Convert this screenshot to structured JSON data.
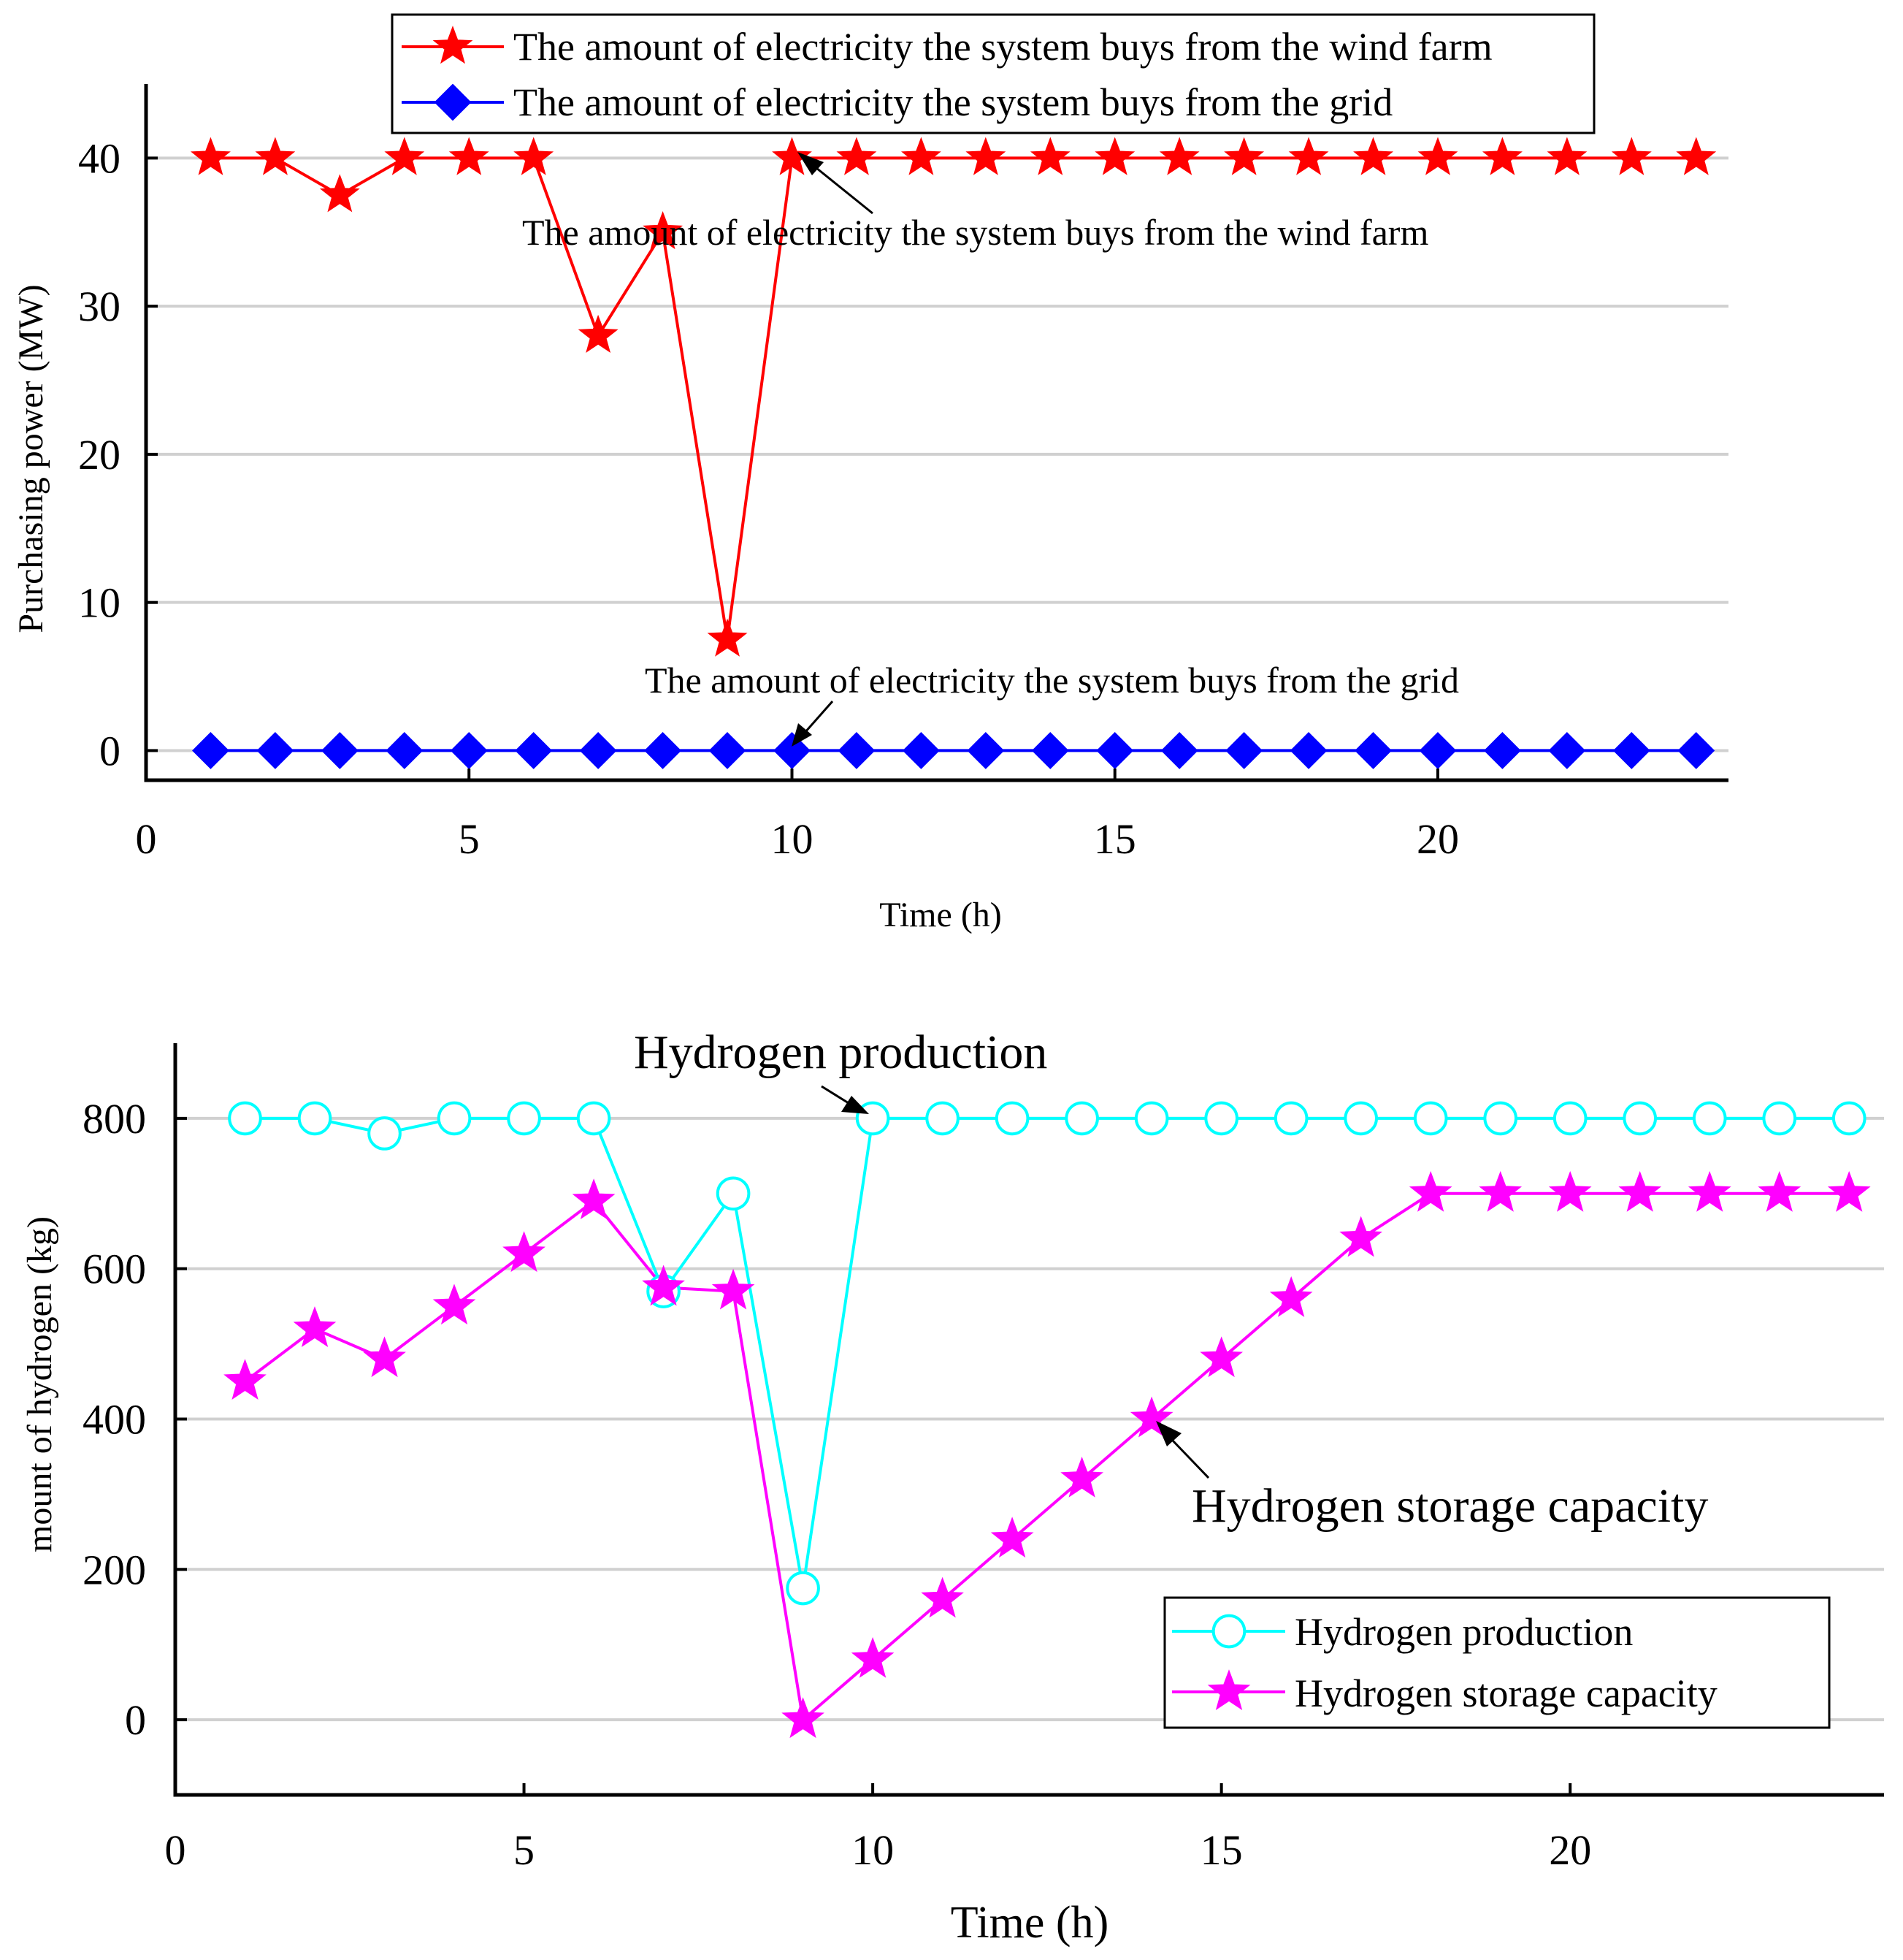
{
  "chart_data": [
    {
      "type": "line",
      "xlabel": "Time (h)",
      "ylabel": "Purchasing power (MW)",
      "xlim": [
        0,
        24.5
      ],
      "ylim": [
        -2,
        45
      ],
      "xticks": [
        0,
        5,
        10,
        15,
        20
      ],
      "yticks": [
        0,
        10,
        20,
        30,
        40
      ],
      "grid": "horizontal",
      "legend_position": "top",
      "x": [
        1,
        2,
        3,
        4,
        5,
        6,
        7,
        8,
        9,
        10,
        11,
        12,
        13,
        14,
        15,
        16,
        17,
        18,
        19,
        20,
        21,
        22,
        23,
        24
      ],
      "series": [
        {
          "name": "The amount of electricity the system buys from the wind farm",
          "color": "#ff0000",
          "marker": "star",
          "values": [
            40,
            40,
            37.5,
            40,
            40,
            40,
            28,
            35,
            7.5,
            40,
            40,
            40,
            40,
            40,
            40,
            40,
            40,
            40,
            40,
            40,
            40,
            40,
            40,
            40
          ]
        },
        {
          "name": "The amount of electricity the system buys from the grid",
          "color": "#0000ff",
          "marker": "diamond",
          "values": [
            0,
            0,
            0,
            0,
            0,
            0,
            0,
            0,
            0,
            0,
            0,
            0,
            0,
            0,
            0,
            0,
            0,
            0,
            0,
            0,
            0,
            0,
            0,
            0
          ]
        }
      ],
      "annotations": [
        {
          "text": "The amount of electricity the system buys from the wind farm",
          "x": 10,
          "y": 40
        },
        {
          "text": "The amount of electricity the system buys from the grid",
          "x": 10,
          "y": 0
        }
      ]
    },
    {
      "type": "line",
      "xlabel": "Time (h)",
      "ylabel": "mount of hydrogen (kg)",
      "xlim": [
        0,
        24.5
      ],
      "ylim": [
        -100,
        900
      ],
      "xticks": [
        0,
        5,
        10,
        15,
        20
      ],
      "yticks": [
        0,
        200,
        400,
        600,
        800
      ],
      "grid": "horizontal",
      "legend_position": "bottom-right",
      "x": [
        1,
        2,
        3,
        4,
        5,
        6,
        7,
        8,
        9,
        10,
        11,
        12,
        13,
        14,
        15,
        16,
        17,
        18,
        19,
        20,
        21,
        22,
        23,
        24
      ],
      "series": [
        {
          "name": "Hydrogen production",
          "color": "#00ffff",
          "marker": "circle",
          "values": [
            800,
            800,
            780,
            800,
            800,
            800,
            570,
            700,
            175,
            800,
            800,
            800,
            800,
            800,
            800,
            800,
            800,
            800,
            800,
            800,
            800,
            800,
            800,
            800
          ]
        },
        {
          "name": "Hydrogen storage capacity",
          "color": "#ff00ff",
          "marker": "star",
          "values": [
            450,
            520,
            480,
            550,
            620,
            690,
            575,
            570,
            0,
            80,
            160,
            240,
            320,
            400,
            480,
            560,
            640,
            700,
            700,
            700,
            700,
            700,
            700,
            700
          ]
        }
      ],
      "annotations": [
        {
          "text": "Hydrogen production",
          "x": 10,
          "y": 800
        },
        {
          "text": "Hydrogen storage capacity",
          "x": 14,
          "y": 400
        }
      ]
    }
  ]
}
